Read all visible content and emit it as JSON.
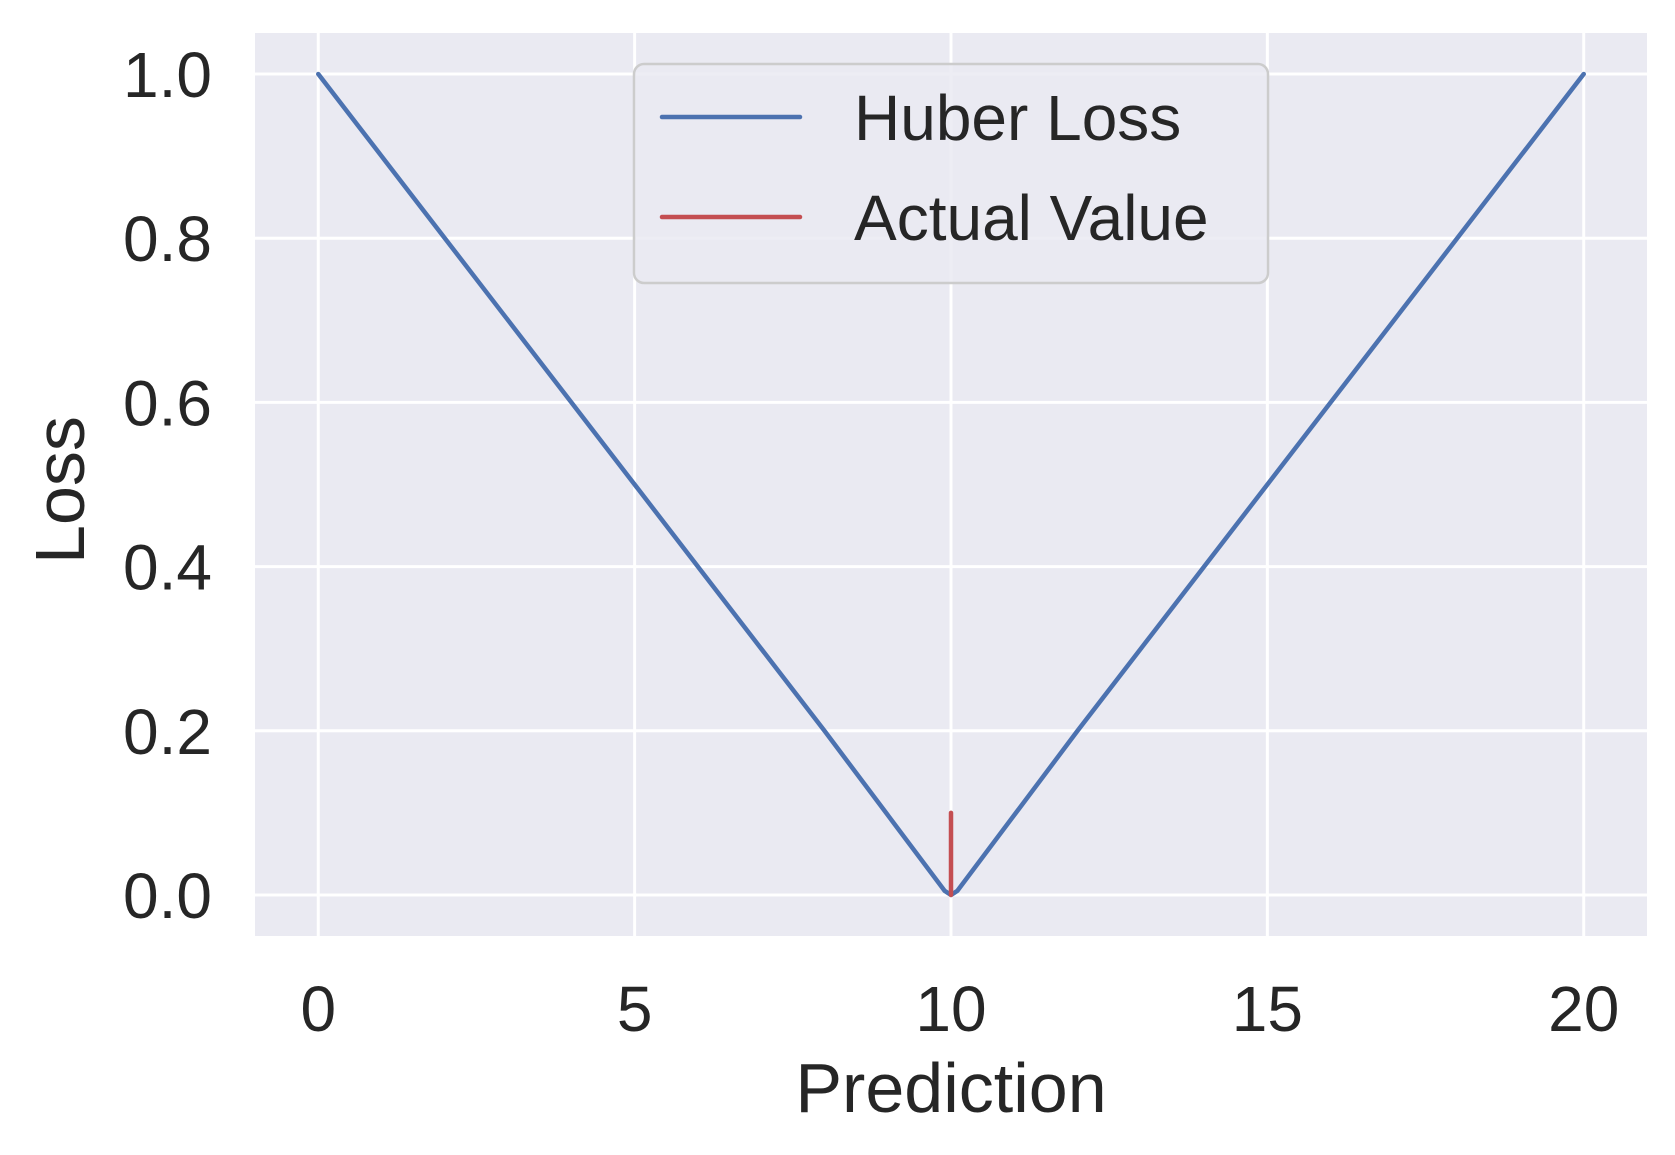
{
  "chart_data": {
    "type": "line",
    "title": "",
    "xlabel": "Prediction",
    "ylabel": "Loss",
    "xlim": [
      -1,
      21
    ],
    "ylim": [
      -0.05,
      1.05
    ],
    "xticks": [
      0,
      5,
      10,
      15,
      20
    ],
    "yticks": [
      0.0,
      0.2,
      0.4,
      0.6,
      0.8,
      1.0
    ],
    "xtick_labels": [
      "0",
      "5",
      "10",
      "15",
      "20"
    ],
    "ytick_labels": [
      "0.0",
      "0.2",
      "0.4",
      "0.6",
      "0.8",
      "1.0"
    ],
    "grid": true,
    "legend_position": "top-center",
    "series": [
      {
        "name": "Huber Loss",
        "color": "#4c72b0",
        "x": [
          0,
          2,
          4,
          6,
          8,
          9.9,
          10,
          10.1,
          12,
          14,
          16,
          18,
          20
        ],
        "y": [
          1.0,
          0.8,
          0.6,
          0.4,
          0.2,
          0.005,
          0.0,
          0.005,
          0.2,
          0.4,
          0.6,
          0.8,
          1.0
        ]
      },
      {
        "name": "Actual Value",
        "color": "#c44e52",
        "x": [
          10,
          10
        ],
        "y": [
          0.0,
          0.1
        ]
      }
    ]
  }
}
